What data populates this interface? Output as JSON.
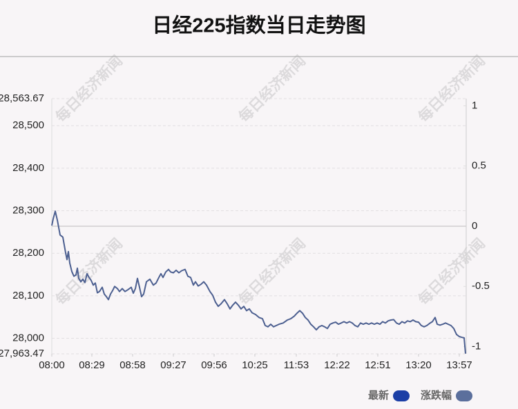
{
  "chart_data": {
    "type": "line",
    "title": "日经225指数当日走势图",
    "watermark": "每日经济新闻",
    "xlim": [
      0,
      300
    ],
    "xticks": [
      {
        "value": 0,
        "label": "08:00"
      },
      {
        "value": 29,
        "label": "08:29"
      },
      {
        "value": 58.5,
        "label": "08:58"
      },
      {
        "value": 88,
        "label": "09:27"
      },
      {
        "value": 117.5,
        "label": "09:56"
      },
      {
        "value": 147,
        "label": "10:25"
      },
      {
        "value": 177,
        "label": "11:53"
      },
      {
        "value": 206.5,
        "label": "12:22"
      },
      {
        "value": 236,
        "label": "12:51"
      },
      {
        "value": 265.5,
        "label": "13:20"
      },
      {
        "value": 295,
        "label": "13:57"
      }
    ],
    "ylim": [
      27963.47,
      28563.67
    ],
    "yticks": [
      {
        "value": 27963.47,
        "label": "27,963.47"
      },
      {
        "value": 28000,
        "label": "28,000"
      },
      {
        "value": 28100,
        "label": "28,100"
      },
      {
        "value": 28200,
        "label": "28,200"
      },
      {
        "value": 28300,
        "label": "28,300"
      },
      {
        "value": 28400,
        "label": "28,400"
      },
      {
        "value": 28500,
        "label": "28,500"
      },
      {
        "value": 28563.67,
        "label": "28,563.67"
      }
    ],
    "y2lim": [
      -1.06,
      1.06
    ],
    "y2ticks": [
      -1,
      -0.5,
      0,
      0.5,
      1
    ],
    "grid": true,
    "x": [
      0,
      1,
      2.5,
      4,
      6,
      8,
      10,
      11,
      12,
      13,
      14.5,
      16,
      17.5,
      18.5,
      19.5,
      21,
      22.5,
      24,
      25.5,
      27,
      28.5,
      30,
      31.5,
      33,
      34.5,
      36.5,
      38,
      39.5,
      41,
      42.5,
      44,
      45.5,
      47.5,
      49,
      51,
      53,
      55,
      57.5,
      59,
      60.5,
      62,
      63.5,
      65,
      66.5,
      68.5,
      71,
      73.5,
      75.5,
      77.5,
      79,
      80.5,
      82.5,
      84.5,
      86,
      88,
      90,
      92,
      94,
      96.5,
      98.5,
      100.5,
      102.5,
      104,
      106,
      108,
      110,
      112,
      114.5,
      116.5,
      118.5,
      120.5,
      122.5,
      125,
      127,
      129,
      131,
      133,
      135,
      137,
      139,
      141,
      143,
      145,
      147.5,
      150,
      152.5,
      154.5,
      156.5,
      158.5,
      160.5,
      162.5,
      164.5,
      167.5,
      170.5,
      173,
      175.5,
      177.5,
      179.5,
      181.5,
      183.5,
      185.5,
      187.5,
      189.5,
      191.5,
      193.5,
      195.5,
      197.5,
      199.5,
      201.5,
      203.5,
      205.5,
      207.5,
      209.5,
      211.5,
      213.5,
      215.5,
      217.5,
      219.5,
      221.5,
      223.5,
      225.5,
      227.5,
      229.5,
      231.5,
      233.5,
      235.5,
      237.5,
      239.5,
      241.5,
      243.5,
      245.5,
      247.5,
      249.5,
      251.5,
      253.5,
      255.5,
      257.5,
      259.5,
      261.5,
      263.5,
      265.5,
      267.5,
      269.5,
      271.5,
      273.5,
      275.5,
      277.5,
      279,
      281,
      283,
      285,
      287,
      289,
      291,
      293,
      295,
      297,
      298.5,
      299.5
    ],
    "series": [
      {
        "name": "最新",
        "color": "#4c5f90",
        "legend_color": "#1c3fa6",
        "values": [
          28265,
          28281,
          28299,
          28278,
          28243,
          28238,
          28201,
          28185,
          28204,
          28177,
          28157,
          28146,
          28149,
          28165,
          28141,
          28133,
          28139,
          28131,
          28152,
          28143,
          28136,
          28125,
          28130,
          28107,
          28110,
          28120,
          28104,
          28098,
          28091,
          28104,
          28112,
          28122,
          28117,
          28110,
          28117,
          28110,
          28114,
          28120,
          28106,
          28117,
          28141,
          28120,
          28098,
          28104,
          28133,
          28139,
          28125,
          28130,
          28143,
          28152,
          28143,
          28156,
          28162,
          28156,
          28154,
          28160,
          28154,
          28159,
          28162,
          28146,
          28143,
          28125,
          28133,
          28123,
          28127,
          28133,
          28125,
          28110,
          28101,
          28085,
          28075,
          28081,
          28091,
          28081,
          28069,
          28078,
          28085,
          28078,
          28069,
          28075,
          28065,
          28069,
          28060,
          28056,
          28049,
          28046,
          28030,
          28027,
          28033,
          28027,
          28030,
          28033,
          28036,
          28043,
          28046,
          28052,
          28059,
          28065,
          28059,
          28049,
          28043,
          28033,
          28027,
          28020,
          28027,
          28030,
          28027,
          28023,
          28033,
          28036,
          28038,
          28033,
          28036,
          28039,
          28036,
          28039,
          28036,
          28030,
          28027,
          28036,
          28033,
          28036,
          28033,
          28036,
          28033,
          28036,
          28033,
          28039,
          28036,
          28041,
          28043,
          28044,
          28036,
          28033,
          28039,
          28036,
          28041,
          28039,
          28043,
          28039,
          28038,
          28030,
          28027,
          28030,
          28035,
          28039,
          28049,
          28033,
          28031,
          28033,
          28036,
          28033,
          28030,
          28023,
          28009,
          28004,
          28002,
          28001,
          27964
        ]
      },
      {
        "name": "涨跌幅",
        "color": "#5b6f9c",
        "axis": "y2"
      }
    ]
  }
}
